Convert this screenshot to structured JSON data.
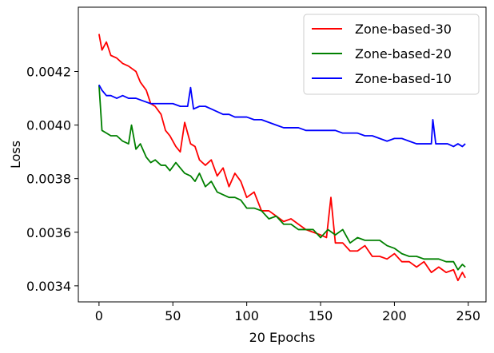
{
  "chart_data": {
    "type": "line",
    "title": "",
    "xlabel": "20 Epochs",
    "ylabel": "Loss",
    "xlim": [
      -14,
      262
    ],
    "ylim": [
      0.00334,
      0.00444
    ],
    "xticks": [
      0,
      50,
      100,
      150,
      200,
      250
    ],
    "xtick_labels": [
      "0",
      "50",
      "100",
      "150",
      "200",
      "250"
    ],
    "yticks": [
      0.0034,
      0.0036,
      0.0038,
      0.004,
      0.0042
    ],
    "ytick_labels": [
      "0.0034",
      "0.0036",
      "0.0038",
      "0.0040",
      "0.0042"
    ],
    "grid": false,
    "legend_position": "top-right",
    "series": [
      {
        "name": "Zone-based-30",
        "color": "#ff0000",
        "x": [
          0,
          2,
          5,
          8,
          12,
          16,
          20,
          25,
          28,
          32,
          35,
          38,
          42,
          45,
          48,
          52,
          55,
          58,
          62,
          65,
          68,
          72,
          76,
          80,
          84,
          88,
          92,
          96,
          100,
          105,
          110,
          115,
          120,
          125,
          130,
          135,
          140,
          145,
          150,
          154,
          157,
          160,
          165,
          170,
          175,
          180,
          185,
          190,
          195,
          200,
          205,
          210,
          215,
          220,
          225,
          230,
          235,
          240,
          243,
          246,
          248
        ],
        "values": [
          0.00434,
          0.00428,
          0.00431,
          0.00426,
          0.00425,
          0.00423,
          0.00422,
          0.0042,
          0.00416,
          0.00413,
          0.00408,
          0.00407,
          0.00404,
          0.00398,
          0.00396,
          0.00392,
          0.0039,
          0.00401,
          0.00393,
          0.00392,
          0.00387,
          0.00385,
          0.00387,
          0.00381,
          0.00384,
          0.00377,
          0.00382,
          0.00379,
          0.00373,
          0.00375,
          0.00368,
          0.00368,
          0.00366,
          0.00364,
          0.00365,
          0.00363,
          0.00361,
          0.0036,
          0.00359,
          0.00358,
          0.00373,
          0.00356,
          0.00356,
          0.00353,
          0.00353,
          0.00355,
          0.00351,
          0.00351,
          0.0035,
          0.00352,
          0.00349,
          0.00349,
          0.00347,
          0.00349,
          0.00345,
          0.00347,
          0.00345,
          0.00346,
          0.00342,
          0.00345,
          0.00343
        ]
      },
      {
        "name": "Zone-based-20",
        "color": "#008000",
        "x": [
          0,
          2,
          5,
          8,
          12,
          16,
          20,
          22,
          25,
          28,
          32,
          35,
          38,
          42,
          45,
          48,
          52,
          55,
          58,
          62,
          65,
          68,
          72,
          76,
          80,
          84,
          88,
          92,
          96,
          100,
          105,
          110,
          115,
          120,
          125,
          130,
          135,
          140,
          145,
          150,
          155,
          160,
          165,
          170,
          175,
          180,
          185,
          190,
          195,
          200,
          205,
          210,
          215,
          220,
          225,
          230,
          235,
          240,
          243,
          246,
          248
        ],
        "values": [
          0.00415,
          0.00398,
          0.00397,
          0.00396,
          0.00396,
          0.00394,
          0.00393,
          0.004,
          0.00391,
          0.00393,
          0.00388,
          0.00386,
          0.00387,
          0.00385,
          0.00385,
          0.00383,
          0.00386,
          0.00384,
          0.00382,
          0.00381,
          0.00379,
          0.00382,
          0.00377,
          0.00379,
          0.00375,
          0.00374,
          0.00373,
          0.00373,
          0.00372,
          0.00369,
          0.00369,
          0.00368,
          0.00365,
          0.00366,
          0.00363,
          0.00363,
          0.00361,
          0.00361,
          0.00361,
          0.00358,
          0.00361,
          0.00359,
          0.00361,
          0.00356,
          0.00358,
          0.00357,
          0.00357,
          0.00357,
          0.00355,
          0.00354,
          0.00352,
          0.00351,
          0.00351,
          0.0035,
          0.0035,
          0.0035,
          0.00349,
          0.00349,
          0.00346,
          0.00348,
          0.00347
        ]
      },
      {
        "name": "Zone-based-10",
        "color": "#0000ff",
        "x": [
          0,
          2,
          5,
          8,
          12,
          16,
          20,
          25,
          30,
          35,
          40,
          45,
          50,
          55,
          60,
          62,
          64,
          68,
          72,
          76,
          80,
          84,
          88,
          92,
          96,
          100,
          105,
          110,
          115,
          120,
          125,
          130,
          135,
          140,
          145,
          150,
          155,
          160,
          165,
          170,
          175,
          180,
          185,
          190,
          195,
          200,
          205,
          210,
          215,
          220,
          225,
          226,
          228,
          232,
          236,
          240,
          243,
          246,
          248
        ],
        "values": [
          0.00415,
          0.00413,
          0.00411,
          0.00411,
          0.0041,
          0.00411,
          0.0041,
          0.0041,
          0.00409,
          0.00408,
          0.00408,
          0.00408,
          0.00408,
          0.00407,
          0.00407,
          0.00414,
          0.00406,
          0.00407,
          0.00407,
          0.00406,
          0.00405,
          0.00404,
          0.00404,
          0.00403,
          0.00403,
          0.00403,
          0.00402,
          0.00402,
          0.00401,
          0.004,
          0.00399,
          0.00399,
          0.00399,
          0.00398,
          0.00398,
          0.00398,
          0.00398,
          0.00398,
          0.00397,
          0.00397,
          0.00397,
          0.00396,
          0.00396,
          0.00395,
          0.00394,
          0.00395,
          0.00395,
          0.00394,
          0.00393,
          0.00393,
          0.00393,
          0.00402,
          0.00393,
          0.00393,
          0.00393,
          0.00392,
          0.00393,
          0.00392,
          0.00393
        ]
      }
    ]
  }
}
